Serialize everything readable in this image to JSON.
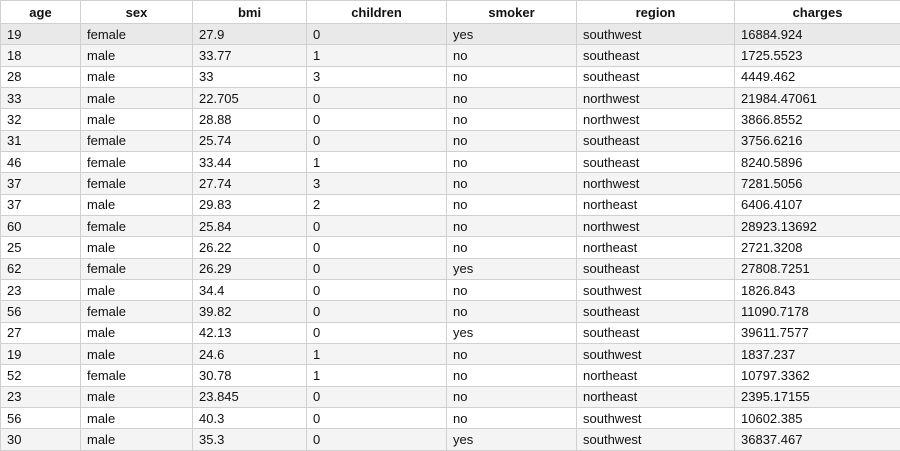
{
  "table": {
    "columns": [
      "age",
      "sex",
      "bmi",
      "children",
      "smoker",
      "region",
      "charges"
    ],
    "rows": [
      [
        "19",
        "female",
        "27.9",
        "0",
        "yes",
        "southwest",
        "16884.924"
      ],
      [
        "18",
        "male",
        "33.77",
        "1",
        "no",
        "southeast",
        "1725.5523"
      ],
      [
        "28",
        "male",
        "33",
        "3",
        "no",
        "southeast",
        "4449.462"
      ],
      [
        "33",
        "male",
        "22.705",
        "0",
        "no",
        "northwest",
        "21984.47061"
      ],
      [
        "32",
        "male",
        "28.88",
        "0",
        "no",
        "northwest",
        "3866.8552"
      ],
      [
        "31",
        "female",
        "25.74",
        "0",
        "no",
        "southeast",
        "3756.6216"
      ],
      [
        "46",
        "female",
        "33.44",
        "1",
        "no",
        "southeast",
        "8240.5896"
      ],
      [
        "37",
        "female",
        "27.74",
        "3",
        "no",
        "northwest",
        "7281.5056"
      ],
      [
        "37",
        "male",
        "29.83",
        "2",
        "no",
        "northeast",
        "6406.4107"
      ],
      [
        "60",
        "female",
        "25.84",
        "0",
        "no",
        "northwest",
        "28923.13692"
      ],
      [
        "25",
        "male",
        "26.22",
        "0",
        "no",
        "northeast",
        "2721.3208"
      ],
      [
        "62",
        "female",
        "26.29",
        "0",
        "yes",
        "southeast",
        "27808.7251"
      ],
      [
        "23",
        "male",
        "34.4",
        "0",
        "no",
        "southwest",
        "1826.843"
      ],
      [
        "56",
        "female",
        "39.82",
        "0",
        "no",
        "southeast",
        "11090.7178"
      ],
      [
        "27",
        "male",
        "42.13",
        "0",
        "yes",
        "southeast",
        "39611.7577"
      ],
      [
        "19",
        "male",
        "24.6",
        "1",
        "no",
        "southwest",
        "1837.237"
      ],
      [
        "52",
        "female",
        "30.78",
        "1",
        "no",
        "northeast",
        "10797.3362"
      ],
      [
        "23",
        "male",
        "23.845",
        "0",
        "no",
        "northeast",
        "2395.17155"
      ],
      [
        "56",
        "male",
        "40.3",
        "0",
        "no",
        "southwest",
        "10602.385"
      ],
      [
        "30",
        "male",
        "35.3",
        "0",
        "yes",
        "southwest",
        "36837.467"
      ]
    ],
    "highlighted_row": 0
  }
}
